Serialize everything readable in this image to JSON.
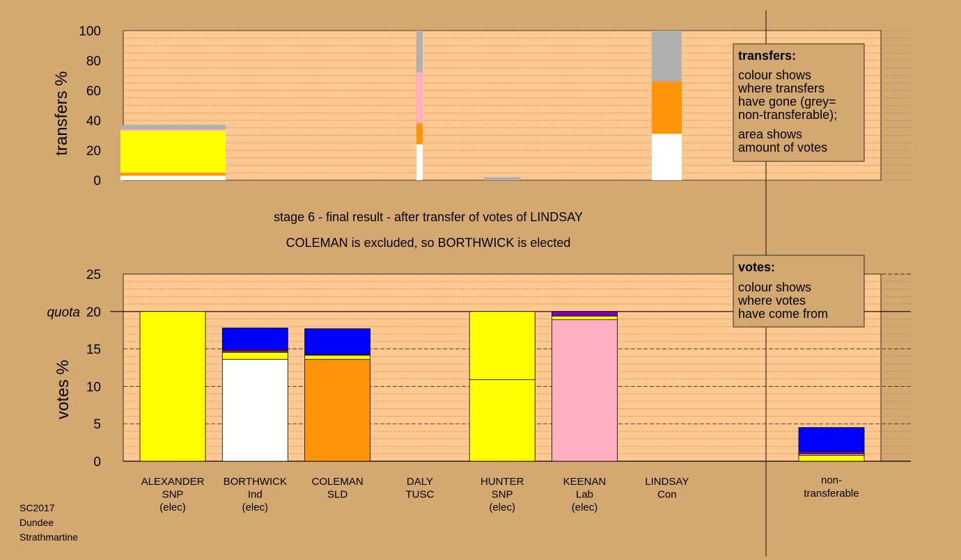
{
  "colors": {
    "page_bg": "#d4a871",
    "plot_bg": "#ffc890",
    "SNP": "#ffff00",
    "Ind": "#ffffff",
    "SLD": "#ff9408",
    "TUSC": "#f8b0c0",
    "Lab": "#ffafc2",
    "Con": "#0000ff",
    "purple": "#8000c0",
    "nontransferable": "#b0b0b0"
  },
  "footer": {
    "line1": "SC2017",
    "line2": "Dundee",
    "line3": "Strathmartine"
  },
  "stage": {
    "line1": "stage 6 - final result - after transfer of votes of LINDSAY",
    "line2": "COLEMAN is excluded, so BORTHWICK is elected"
  },
  "legend_transfers": {
    "title": "transfers:",
    "lines": [
      "colour shows",
      "where transfers",
      "have gone (grey=",
      "non-transferable);",
      "area shows",
      "amount of votes"
    ]
  },
  "legend_votes": {
    "title": "votes:",
    "lines": [
      "colour shows",
      "where votes",
      "have come from"
    ]
  },
  "chart_data": [
    {
      "type": "bar",
      "stacked": true,
      "ylabel": "transfers %",
      "ylim": [
        0,
        100
      ],
      "yticks": [
        0,
        20,
        40,
        60,
        80,
        100
      ],
      "bars": [
        {
          "from": "ALEXANDER",
          "width_share": 1.0,
          "segments": [
            {
              "to": "BORTHWICK",
              "color": "#ffffff",
              "value": 3
            },
            {
              "to": "COLEMAN",
              "color": "#ff9408",
              "value": 2
            },
            {
              "to": "HUNTER",
              "color": "#ffff00",
              "value": 28
            },
            {
              "to": "KEENAN",
              "color": "#ffafc2",
              "value": 1
            },
            {
              "to": "non-transferable",
              "color": "#b0b0b0",
              "value": 3
            }
          ]
        },
        {
          "from": "DALY",
          "width_share": 0.06,
          "segments": [
            {
              "to": "BORTHWICK",
              "color": "#ffffff",
              "value": 24
            },
            {
              "to": "COLEMAN",
              "color": "#ff9408",
              "value": 14
            },
            {
              "to": "KEENAN",
              "color": "#ffafc2",
              "value": 34
            },
            {
              "to": "non-transferable",
              "color": "#b0b0b0",
              "value": 28
            }
          ]
        },
        {
          "from": "HUNTER",
          "width_share": 0.45,
          "segments": [
            {
              "to": "non-transferable",
              "color": "#b0b0b0",
              "value": 2
            }
          ]
        },
        {
          "from": "LINDSAY",
          "width_share": 0.36,
          "segments": [
            {
              "to": "BORTHWICK",
              "color": "#ffffff",
              "value": 31
            },
            {
              "to": "COLEMAN",
              "color": "#ff9408",
              "value": 35
            },
            {
              "to": "non-transferable",
              "color": "#b0b0b0",
              "value": 34
            }
          ]
        }
      ]
    },
    {
      "type": "bar",
      "stacked": true,
      "ylabel": "votes %",
      "ylim": [
        0,
        25
      ],
      "yticks": [
        0,
        5,
        10,
        15,
        20,
        25
      ],
      "quota": 20,
      "quota_label": "quota",
      "categories": [
        {
          "name": "ALEXANDER",
          "party": "SNP",
          "status": "(elec)"
        },
        {
          "name": "BORTHWICK",
          "party": "Ind",
          "status": "(elec)"
        },
        {
          "name": "COLEMAN",
          "party": "SLD",
          "status": ""
        },
        {
          "name": "DALY",
          "party": "TUSC",
          "status": ""
        },
        {
          "name": "HUNTER",
          "party": "SNP",
          "status": "(elec)"
        },
        {
          "name": "KEENAN",
          "party": "Lab",
          "status": "(elec)"
        },
        {
          "name": "LINDSAY",
          "party": "Con",
          "status": ""
        }
      ],
      "nontransferable_label": [
        "non-",
        "transferable"
      ],
      "stacks": [
        [
          {
            "color": "#ffff00",
            "value": 20
          }
        ],
        [
          {
            "color": "#ffffff",
            "value": 13.6
          },
          {
            "color": "#ffff00",
            "value": 0.95
          },
          {
            "color": "#ff9408",
            "value": 0.15
          },
          {
            "color": "#8000c0",
            "value": 0.2
          },
          {
            "color": "#0000ff",
            "value": 2.9
          }
        ],
        [
          {
            "color": "#ff9408",
            "value": 13.6
          },
          {
            "color": "#ffff00",
            "value": 0.55
          },
          {
            "color": "#ffafc2",
            "value": 0.1
          },
          {
            "color": "#0000ff",
            "value": 3.45
          }
        ],
        [
          {
            "color": "#f8b0c0",
            "value": 0
          }
        ],
        [
          {
            "color": "#ffff00",
            "value": 10.9
          },
          {
            "color": "#ffff00",
            "value": 9.1
          }
        ],
        [
          {
            "color": "#ffafc2",
            "value": 18.9
          },
          {
            "color": "#ffff00",
            "value": 0.5
          },
          {
            "color": "#8000c0",
            "value": 0.6
          }
        ],
        [
          {
            "color": "#0000ff",
            "value": 0
          }
        ]
      ],
      "nontransferable": [
        {
          "color": "#ffff00",
          "value": 0.8
        },
        {
          "color": "#ffafc2",
          "value": 0.2
        },
        {
          "color": "#8000c0",
          "value": 0.3
        },
        {
          "color": "#0000ff",
          "value": 3.2
        }
      ]
    }
  ]
}
